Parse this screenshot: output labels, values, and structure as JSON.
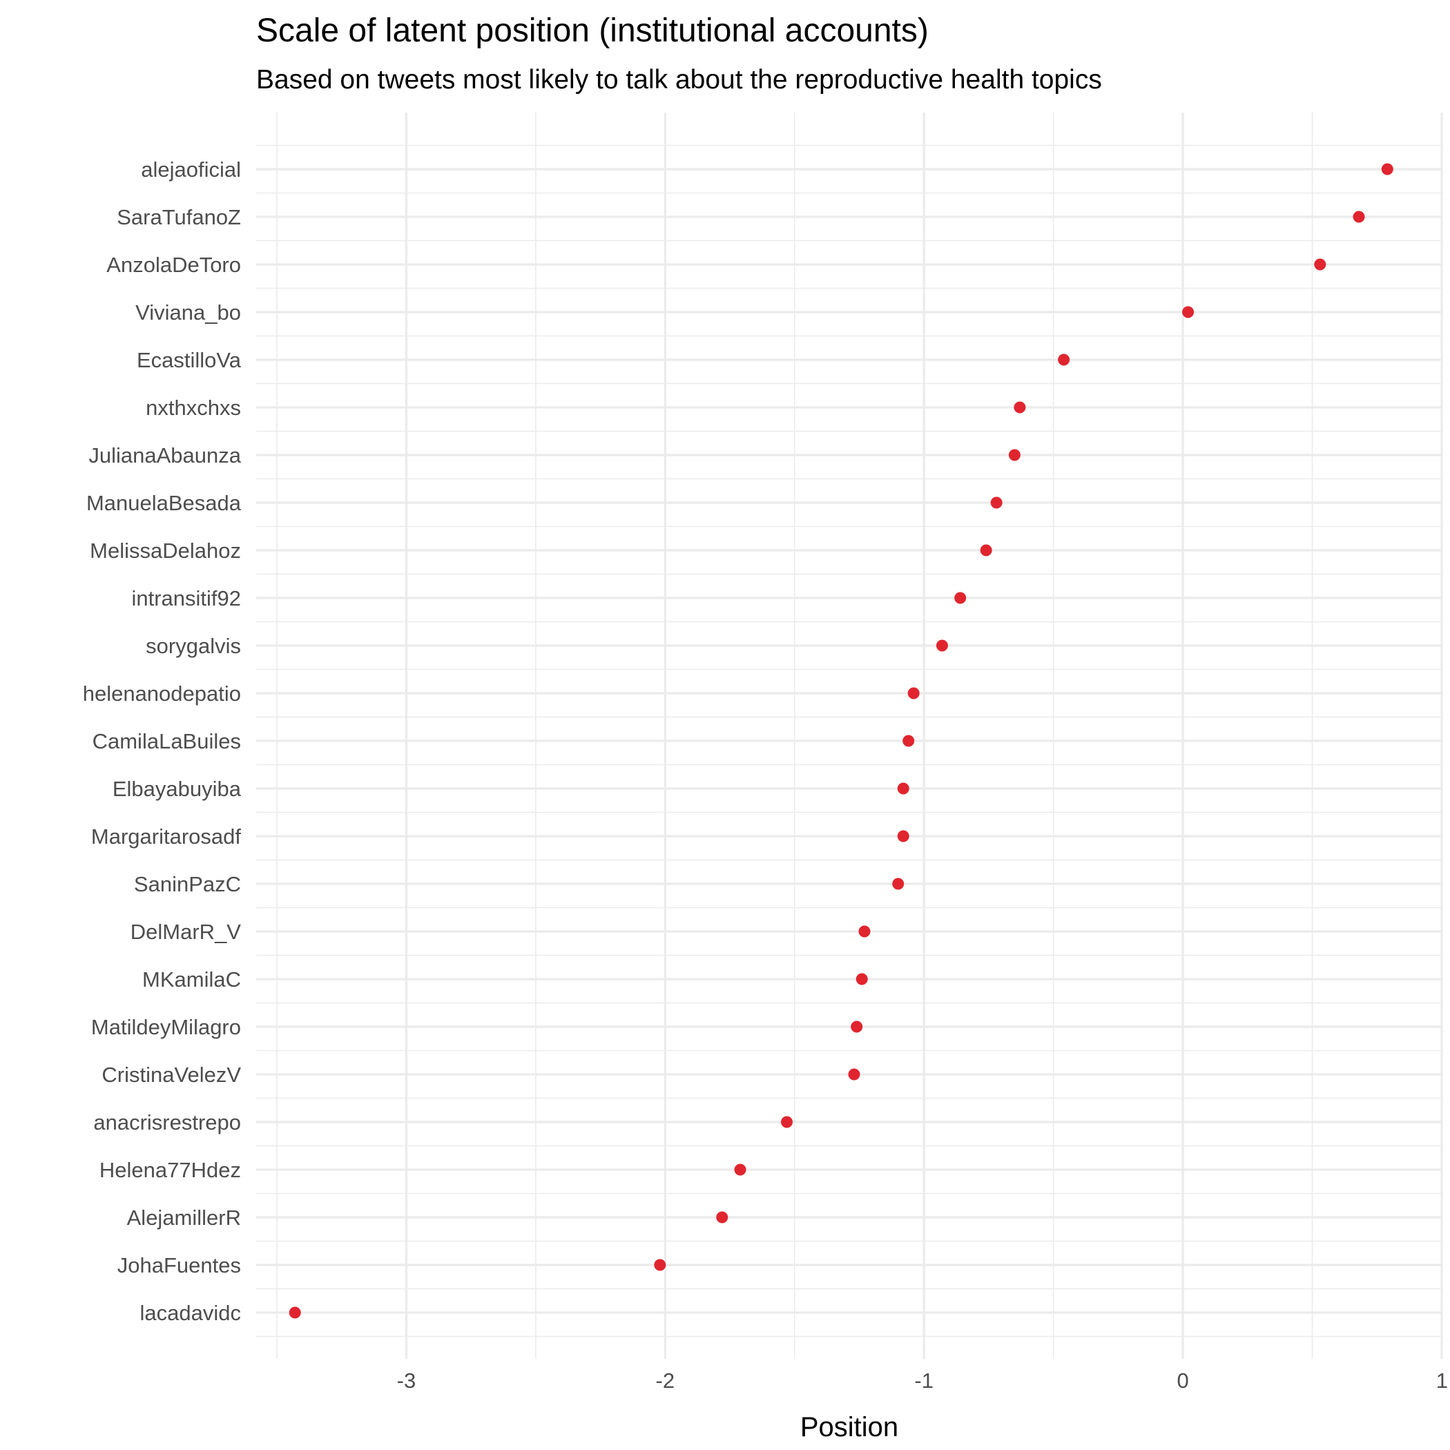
{
  "chart_data": {
    "type": "scatter",
    "title": "Scale of latent position (institutional accounts)",
    "subtitle": "Based on tweets most likely to talk about the reproductive health topics",
    "xlabel": "Position",
    "ylabel": "",
    "xlim": [
      -3.58,
      1.0
    ],
    "xticks": [
      -3,
      -2,
      -1,
      0,
      1
    ],
    "grid": true,
    "legend": "none",
    "point_color": "#e0252f",
    "categories": [
      "alejaoficial",
      "SaraTufanoZ",
      "AnzolaDeToro",
      "Viviana_bo",
      "EcastilloVa",
      "nxthxchxs",
      "JulianaAbaunza",
      "ManuelaBesada",
      "MelissaDelahoz",
      "intransitif92",
      "sorygalvis",
      "helenanodepatio",
      "CamilaLaBuiles",
      "Elbayabuyiba",
      "Margaritarosadf",
      "SaninPazC",
      "DelMarR_V",
      "MKamilaC",
      "MatildeyMilagro",
      "CristinaVelezV",
      "anacrisrestrepo",
      "Helena77Hdez",
      "AlejamillerR",
      "JohaFuentes",
      "lacadavidc"
    ],
    "values": [
      0.79,
      0.68,
      0.53,
      0.02,
      -0.46,
      -0.63,
      -0.65,
      -0.72,
      -0.76,
      -0.86,
      -0.93,
      -1.04,
      -1.06,
      -1.08,
      -1.08,
      -1.1,
      -1.23,
      -1.24,
      -1.26,
      -1.27,
      -1.53,
      -1.71,
      -1.78,
      -2.02,
      -3.43
    ]
  }
}
